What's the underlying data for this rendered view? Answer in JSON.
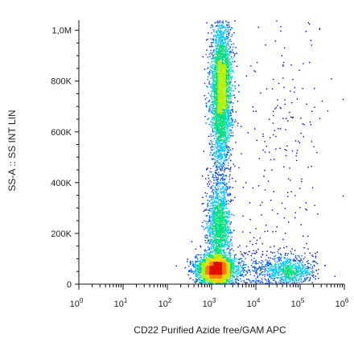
{
  "chart_data": {
    "type": "scatter",
    "subtype": "flow-cytometry density dot plot",
    "xlabel": "CD22 Purified Azide free/GAM APC",
    "ylabel": "SS-A :: SS INT LIN",
    "x_scale": "log",
    "y_scale": "linear",
    "xlim": [
      1,
      1000000
    ],
    "ylim": [
      0,
      1040000
    ],
    "x_ticks": [
      {
        "value": 1,
        "base": "10",
        "exp": "0"
      },
      {
        "value": 10,
        "base": "10",
        "exp": "1"
      },
      {
        "value": 100,
        "base": "10",
        "exp": "2"
      },
      {
        "value": 1000,
        "base": "10",
        "exp": "3"
      },
      {
        "value": 10000,
        "base": "10",
        "exp": "4"
      },
      {
        "value": 100000,
        "base": "10",
        "exp": "5"
      },
      {
        "value": 1000000,
        "base": "10",
        "exp": "6"
      }
    ],
    "y_ticks": [
      {
        "value": 0,
        "label": "0"
      },
      {
        "value": 200000,
        "label": "200K"
      },
      {
        "value": 400000,
        "label": "400K"
      },
      {
        "value": 600000,
        "label": "600K"
      },
      {
        "value": 800000,
        "label": "800K"
      },
      {
        "value": 1000000,
        "label": "1,0M"
      }
    ],
    "grid": false,
    "legend": "none",
    "colormap": [
      "#0000c8",
      "#0055ff",
      "#00c8ff",
      "#00e07a",
      "#b4f000",
      "#ffd200",
      "#ff7a00",
      "#e01000"
    ],
    "populations": [
      {
        "x_center": 1200,
        "y_center": 60000,
        "log_spread_x": 0.22,
        "y_spread": 28000,
        "n": 2600
      },
      {
        "x_center": 1400,
        "y_center": 230000,
        "log_spread_x": 0.13,
        "y_spread": 95000,
        "n": 1500
      },
      {
        "x_center": 1600,
        "y_center": 760000,
        "log_spread_x": 0.12,
        "y_spread": 150000,
        "n": 3200
      },
      {
        "x_center": 60000,
        "y_center": 55000,
        "log_spread_x": 0.28,
        "y_spread": 25000,
        "n": 600
      },
      {
        "x_center": 12000,
        "y_center": 60000,
        "log_spread_x": 0.6,
        "y_spread": 45000,
        "n": 450
      },
      {
        "x_center": 40000,
        "y_center": 500000,
        "log_spread_x": 0.5,
        "y_spread": 280000,
        "n": 220
      }
    ]
  }
}
